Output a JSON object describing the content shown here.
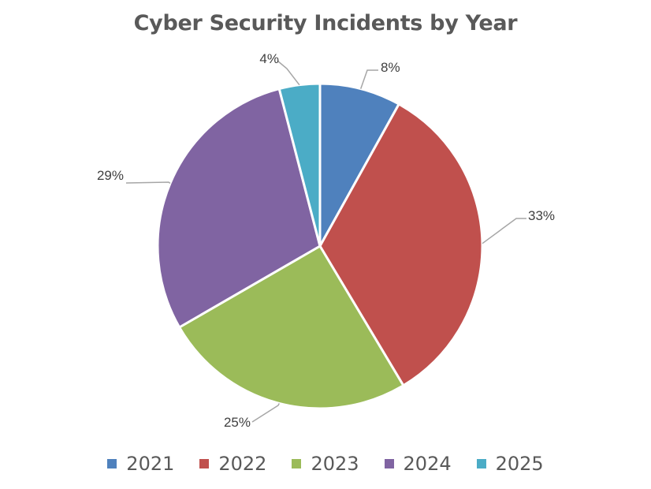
{
  "chart_data": {
    "type": "pie",
    "title": "Cyber Security Incidents by Year",
    "categories": [
      "2021",
      "2022",
      "2023",
      "2024",
      "2025"
    ],
    "values": [
      8,
      33,
      25,
      29,
      4
    ],
    "labels": [
      "8%",
      "33%",
      "25%",
      "29%",
      "4%"
    ],
    "colors": [
      "#4F81BD",
      "#C0504D",
      "#9BBB59",
      "#8064A2",
      "#4BACC6"
    ],
    "legend_position": "bottom",
    "start_angle_deg": 0,
    "direction": "clockwise"
  }
}
